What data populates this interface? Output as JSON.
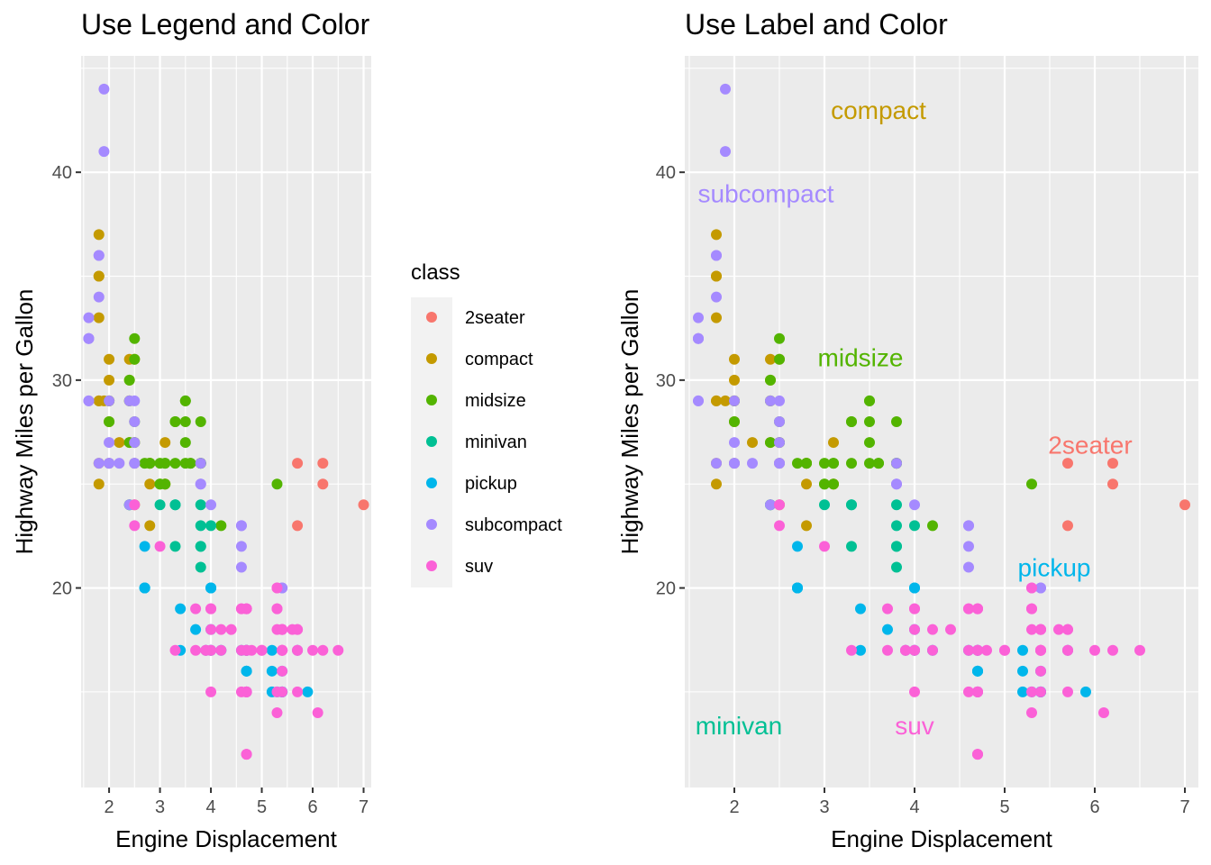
{
  "panels": [
    {
      "title": "Use Legend and Color",
      "xlabel": "Engine Displacement",
      "ylabel": "Highway Miles per Gallon"
    },
    {
      "title": "Use Label and Color",
      "xlabel": "Engine Displacement",
      "ylabel": "Highway Miles per Gallon"
    }
  ],
  "legend": {
    "title": "class",
    "placement": "right of left panel"
  },
  "chart_data": {
    "type": "scatter",
    "xlim": [
      1.45,
      7.15
    ],
    "ylim": [
      10.4,
      45.6
    ],
    "x_ticks": [
      2,
      3,
      4,
      5,
      6,
      7
    ],
    "y_ticks": [
      20,
      30,
      40
    ],
    "grid": true,
    "classes": [
      {
        "name": "2seater",
        "color": "#F8766D"
      },
      {
        "name": "compact",
        "color": "#C49A00"
      },
      {
        "name": "midsize",
        "color": "#53B400"
      },
      {
        "name": "minivan",
        "color": "#00C094"
      },
      {
        "name": "pickup",
        "color": "#00B6EB"
      },
      {
        "name": "subcompact",
        "color": "#A58AFF"
      },
      {
        "name": "suv",
        "color": "#FB61D7"
      }
    ],
    "series": [
      {
        "name": "2seater",
        "points": [
          [
            5.7,
            26
          ],
          [
            5.7,
            23
          ],
          [
            6.2,
            26
          ],
          [
            6.2,
            25
          ],
          [
            7.0,
            24
          ]
        ]
      },
      {
        "name": "compact",
        "points": [
          [
            1.8,
            29
          ],
          [
            1.8,
            29
          ],
          [
            2.0,
            31
          ],
          [
            2.0,
            30
          ],
          [
            2.8,
            26
          ],
          [
            2.8,
            26
          ],
          [
            3.1,
            27
          ],
          [
            1.8,
            26
          ],
          [
            1.8,
            25
          ],
          [
            2.0,
            28
          ],
          [
            2.0,
            29
          ],
          [
            2.8,
            26
          ],
          [
            2.8,
            25
          ],
          [
            3.1,
            25
          ],
          [
            3.1,
            25
          ],
          [
            1.8,
            33
          ],
          [
            1.8,
            35
          ],
          [
            1.8,
            37
          ],
          [
            1.8,
            35
          ],
          [
            1.9,
            29
          ],
          [
            2.0,
            26
          ],
          [
            2.0,
            29
          ],
          [
            2.4,
            29
          ],
          [
            2.5,
            27
          ],
          [
            2.5,
            31
          ],
          [
            2.2,
            27
          ],
          [
            2.4,
            27
          ],
          [
            2.5,
            24
          ],
          [
            2.8,
            23
          ],
          [
            2.4,
            31
          ],
          [
            2.4,
            30
          ],
          [
            2.5,
            26
          ]
        ]
      },
      {
        "name": "midsize",
        "points": [
          [
            2.4,
            27
          ],
          [
            2.4,
            30
          ],
          [
            3.1,
            26
          ],
          [
            3.5,
            29
          ],
          [
            3.6,
            26
          ],
          [
            2.4,
            24
          ],
          [
            3.0,
            26
          ],
          [
            3.3,
            28
          ],
          [
            3.3,
            26
          ],
          [
            3.8,
            28
          ],
          [
            3.8,
            26
          ],
          [
            3.8,
            26
          ],
          [
            5.3,
            25
          ],
          [
            2.5,
            31
          ],
          [
            2.5,
            32
          ],
          [
            2.5,
            27
          ],
          [
            2.5,
            28
          ],
          [
            2.7,
            26
          ],
          [
            3.0,
            25
          ],
          [
            3.3,
            28
          ],
          [
            3.5,
            29
          ],
          [
            3.5,
            27
          ],
          [
            2.4,
            29
          ],
          [
            2.0,
            29
          ],
          [
            2.0,
            28
          ],
          [
            2.8,
            26
          ],
          [
            3.1,
            26
          ],
          [
            3.1,
            25
          ],
          [
            3.5,
            28
          ],
          [
            3.5,
            26
          ],
          [
            3.6,
            26
          ],
          [
            3.8,
            26
          ],
          [
            4.2,
            23
          ],
          [
            3.0,
            25
          ],
          [
            2.8,
            26
          ]
        ]
      },
      {
        "name": "minivan",
        "points": [
          [
            2.4,
            24
          ],
          [
            3.0,
            24
          ],
          [
            3.3,
            22
          ],
          [
            3.3,
            24
          ],
          [
            3.3,
            24
          ],
          [
            3.8,
            22
          ],
          [
            3.8,
            24
          ],
          [
            3.8,
            22
          ],
          [
            3.8,
            21
          ],
          [
            4.0,
            23
          ],
          [
            3.8,
            23
          ]
        ]
      },
      {
        "name": "pickup",
        "points": [
          [
            2.7,
            20
          ],
          [
            2.7,
            20
          ],
          [
            2.7,
            22
          ],
          [
            3.4,
            17
          ],
          [
            3.4,
            19
          ],
          [
            4.0,
            18
          ],
          [
            4.0,
            20
          ],
          [
            4.7,
            17
          ],
          [
            4.7,
            16
          ],
          [
            4.7,
            17
          ],
          [
            4.7,
            16
          ],
          [
            4.7,
            15
          ],
          [
            5.2,
            16
          ],
          [
            5.2,
            17
          ],
          [
            5.7,
            17
          ],
          [
            5.9,
            15
          ],
          [
            3.7,
            18
          ],
          [
            3.9,
            17
          ],
          [
            4.7,
            16
          ],
          [
            4.7,
            16
          ],
          [
            5.2,
            15
          ],
          [
            4.0,
            17
          ],
          [
            4.0,
            20
          ],
          [
            4.6,
            17
          ],
          [
            5.4,
            15
          ],
          [
            5.4,
            15
          ],
          [
            5.4,
            16
          ],
          [
            2.7,
            20
          ],
          [
            2.7,
            20
          ],
          [
            4.0,
            20
          ],
          [
            4.0,
            17
          ],
          [
            4.2,
            17
          ],
          [
            4.7,
            17
          ],
          [
            5.3,
            15
          ],
          [
            5.4,
            15
          ]
        ]
      },
      {
        "name": "subcompact",
        "points": [
          [
            3.8,
            26
          ],
          [
            3.8,
            25
          ],
          [
            4.0,
            24
          ],
          [
            4.6,
            21
          ],
          [
            4.6,
            22
          ],
          [
            4.6,
            23
          ],
          [
            5.4,
            20
          ],
          [
            5.4,
            20
          ],
          [
            5.4,
            18
          ],
          [
            1.6,
            33
          ],
          [
            1.6,
            32
          ],
          [
            1.6,
            32
          ],
          [
            1.6,
            29
          ],
          [
            1.6,
            32
          ],
          [
            1.8,
            34
          ],
          [
            1.8,
            36
          ],
          [
            1.8,
            36
          ],
          [
            2.0,
            29
          ],
          [
            2.0,
            26
          ],
          [
            2.0,
            27
          ],
          [
            2.4,
            29
          ],
          [
            2.5,
            29
          ],
          [
            2.5,
            28
          ],
          [
            2.5,
            27
          ],
          [
            1.9,
            44
          ],
          [
            1.9,
            41
          ],
          [
            1.8,
            26
          ],
          [
            2.2,
            26
          ],
          [
            2.5,
            26
          ],
          [
            2.0,
            26
          ],
          [
            2.5,
            26
          ],
          [
            2.4,
            24
          ],
          [
            1.6,
            29
          ],
          [
            4.6,
            23
          ],
          [
            3.8,
            25
          ]
        ]
      },
      {
        "name": "suv",
        "points": [
          [
            5.3,
            20
          ],
          [
            5.3,
            15
          ],
          [
            5.3,
            20
          ],
          [
            5.7,
            17
          ],
          [
            6.0,
            17
          ],
          [
            5.7,
            18
          ],
          [
            6.5,
            17
          ],
          [
            5.3,
            19
          ],
          [
            6.2,
            17
          ],
          [
            4.7,
            12
          ],
          [
            4.7,
            12
          ],
          [
            5.7,
            17
          ],
          [
            6.1,
            14
          ],
          [
            4.0,
            15
          ],
          [
            4.7,
            15
          ],
          [
            4.7,
            17
          ],
          [
            4.7,
            17
          ],
          [
            5.4,
            17
          ],
          [
            5.4,
            18
          ],
          [
            5.4,
            17
          ],
          [
            4.2,
            18
          ],
          [
            4.0,
            19
          ],
          [
            4.7,
            19
          ],
          [
            4.7,
            19
          ],
          [
            4.6,
            17
          ],
          [
            4.6,
            19
          ],
          [
            5.0,
            17
          ],
          [
            5.4,
            17
          ],
          [
            5.4,
            15
          ],
          [
            4.0,
            17
          ],
          [
            4.7,
            15
          ],
          [
            4.7,
            15
          ],
          [
            5.4,
            16
          ],
          [
            2.5,
            23
          ],
          [
            2.5,
            24
          ],
          [
            3.0,
            22
          ],
          [
            3.3,
            17
          ],
          [
            3.7,
            19
          ],
          [
            4.0,
            18
          ],
          [
            4.0,
            17
          ],
          [
            4.4,
            18
          ],
          [
            4.6,
            19
          ],
          [
            5.3,
            18
          ],
          [
            5.3,
            14
          ],
          [
            5.6,
            18
          ],
          [
            5.7,
            18
          ],
          [
            5.3,
            19
          ],
          [
            3.9,
            17
          ],
          [
            4.8,
            17
          ],
          [
            5.4,
            18
          ],
          [
            3.7,
            17
          ],
          [
            4.0,
            19
          ],
          [
            4.7,
            15
          ],
          [
            4.7,
            19
          ],
          [
            5.4,
            18
          ],
          [
            5.4,
            17
          ],
          [
            5.7,
            15
          ],
          [
            3.9,
            17
          ],
          [
            4.6,
            15
          ],
          [
            5.0,
            17
          ],
          [
            4.2,
            17
          ],
          [
            4.7,
            17
          ]
        ]
      }
    ],
    "annotations": [
      {
        "label": "2seater",
        "x": 5.95,
        "y": 26.9
      },
      {
        "label": "compact",
        "x": 3.6,
        "y": 43.0
      },
      {
        "label": "midsize",
        "x": 3.4,
        "y": 31.1
      },
      {
        "label": "minivan",
        "x": 2.05,
        "y": 13.4
      },
      {
        "label": "pickup",
        "x": 5.55,
        "y": 21.0
      },
      {
        "label": "subcompact",
        "x": 2.35,
        "y": 39.0
      },
      {
        "label": "suv",
        "x": 4.0,
        "y": 13.4
      }
    ]
  }
}
